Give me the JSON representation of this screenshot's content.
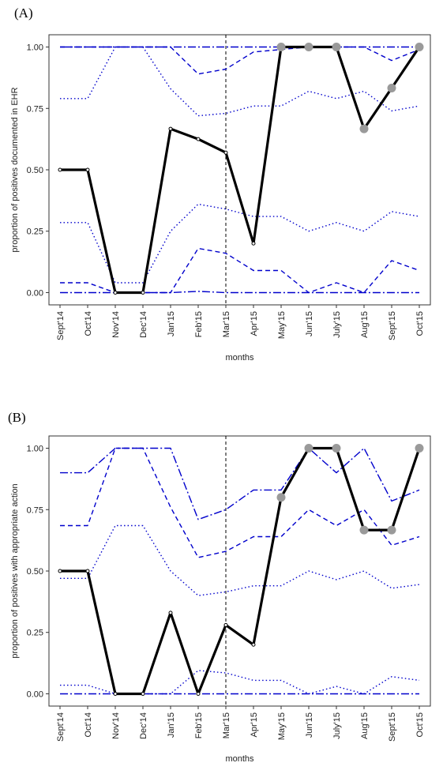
{
  "chart_data": [
    {
      "type": "line",
      "panel_label": "(A)",
      "xlabel": "months",
      "ylabel": "proportion of positives documented in EHR",
      "categories": [
        "Sept'14",
        "Oct'14",
        "Nov'14",
        "Dec'14",
        "Jan'15",
        "Feb'15",
        "Mar'15",
        "Apr'15",
        "May'15",
        "Jun'15",
        "July'15",
        "Aug'15",
        "Sept'15",
        "Oct'15"
      ],
      "ylim": [
        -0.05,
        1.05
      ],
      "yticks": [
        0.0,
        0.25,
        0.5,
        0.75,
        1.0
      ],
      "ytick_labels": [
        "0.00",
        "0.25",
        "0.50",
        "0.75",
        "1.00"
      ],
      "vline_category": "Mar'15",
      "grid": false,
      "series": [
        {
          "style": "solid",
          "color": "#000000",
          "values": [
            0.5,
            0.5,
            0.0,
            0.0,
            0.667,
            0.625,
            0.57,
            0.2,
            1.0,
            1.0,
            1.0,
            0.667,
            0.833,
            1.0
          ]
        },
        {
          "style": "dotted",
          "color": "#0000cc",
          "values": [
            0.79,
            0.79,
            1.0,
            1.0,
            0.83,
            0.72,
            0.73,
            0.76,
            0.76,
            0.82,
            0.79,
            0.82,
            0.74,
            0.76
          ]
        },
        {
          "style": "dotted",
          "color": "#0000cc",
          "values": [
            0.285,
            0.285,
            0.04,
            0.04,
            0.25,
            0.36,
            0.34,
            0.31,
            0.31,
            0.25,
            0.285,
            0.25,
            0.33,
            0.31
          ]
        },
        {
          "style": "dashed",
          "color": "#0000cc",
          "values": [
            1.0,
            1.0,
            1.0,
            1.0,
            1.0,
            0.89,
            0.91,
            0.98,
            0.99,
            1.0,
            1.0,
            1.0,
            0.945,
            0.99
          ]
        },
        {
          "style": "dashed",
          "color": "#0000cc",
          "values": [
            0.04,
            0.04,
            0.0,
            0.0,
            0.0,
            0.18,
            0.16,
            0.09,
            0.09,
            0.0,
            0.04,
            0.0,
            0.13,
            0.09
          ]
        },
        {
          "style": "dashdot",
          "color": "#0000cc",
          "values": [
            1.0,
            1.0,
            1.0,
            1.0,
            1.0,
            1.0,
            1.0,
            1.0,
            1.0,
            1.0,
            1.0,
            1.0,
            1.0,
            1.0
          ]
        },
        {
          "style": "dashdot",
          "color": "#0000cc",
          "values": [
            0.0,
            0.0,
            0.0,
            0.0,
            0.0,
            0.005,
            0.0,
            0.0,
            0.0,
            0.0,
            0.0,
            0.0,
            0.0,
            0.0
          ]
        }
      ],
      "highlight_points": [
        {
          "category": "May'15",
          "value": 1.0
        },
        {
          "category": "Jun'15",
          "value": 1.0
        },
        {
          "category": "July'15",
          "value": 1.0
        },
        {
          "category": "Aug'15",
          "value": 0.667
        },
        {
          "category": "Sept'15",
          "value": 0.833
        },
        {
          "category": "Oct'15",
          "value": 1.0
        }
      ],
      "highlight_color": "#9a9a9a"
    },
    {
      "type": "line",
      "panel_label": "(B)",
      "xlabel": "months",
      "ylabel": "proportion of positives with appropriate action",
      "categories": [
        "Sept'14",
        "Oct'14",
        "Nov'14",
        "Dec'14",
        "Jan'15",
        "Feb'15",
        "Mar'15",
        "Apr'15",
        "May'15",
        "Jun'15",
        "July'15",
        "Aug'15",
        "Sept'15",
        "Oct'15"
      ],
      "ylim": [
        -0.05,
        1.05
      ],
      "yticks": [
        0.0,
        0.25,
        0.5,
        0.75,
        1.0
      ],
      "ytick_labels": [
        "0.00",
        "0.25",
        "0.50",
        "0.75",
        "1.00"
      ],
      "vline_category": "Mar'15",
      "grid": false,
      "series": [
        {
          "style": "solid",
          "color": "#000000",
          "values": [
            0.5,
            0.5,
            0.0,
            0.0,
            0.33,
            0.0,
            0.28,
            0.2,
            0.8,
            1.0,
            1.0,
            0.667,
            0.667,
            1.0
          ]
        },
        {
          "style": "dotted",
          "color": "#0000cc",
          "values": [
            0.47,
            0.47,
            0.685,
            0.685,
            0.5,
            0.4,
            0.415,
            0.44,
            0.44,
            0.5,
            0.465,
            0.5,
            0.43,
            0.445
          ]
        },
        {
          "style": "dotted",
          "color": "#0000cc",
          "values": [
            0.035,
            0.035,
            0.0,
            0.0,
            0.0,
            0.095,
            0.085,
            0.055,
            0.055,
            0.0,
            0.03,
            0.0,
            0.07,
            0.055
          ]
        },
        {
          "style": "dashed",
          "color": "#0000cc",
          "values": [
            0.685,
            0.685,
            1.0,
            1.0,
            0.76,
            0.555,
            0.58,
            0.64,
            0.64,
            0.75,
            0.685,
            0.75,
            0.605,
            0.64
          ]
        },
        {
          "style": "dashdot",
          "color": "#0000cc",
          "values": [
            0.9,
            0.9,
            1.0,
            1.0,
            1.0,
            0.71,
            0.75,
            0.83,
            0.83,
            1.0,
            0.9,
            1.0,
            0.785,
            0.83
          ]
        },
        {
          "style": "dashdot",
          "color": "#0000cc",
          "values": [
            0.0,
            0.0,
            0.0,
            0.0,
            0.0,
            0.0,
            0.0,
            0.0,
            0.0,
            0.0,
            0.0,
            0.0,
            0.0,
            0.0
          ]
        }
      ],
      "highlight_points": [
        {
          "category": "May'15",
          "value": 0.8
        },
        {
          "category": "Jun'15",
          "value": 1.0
        },
        {
          "category": "July'15",
          "value": 1.0
        },
        {
          "category": "Aug'15",
          "value": 0.667
        },
        {
          "category": "Sept'15",
          "value": 0.667
        },
        {
          "category": "Oct'15",
          "value": 1.0
        }
      ],
      "highlight_color": "#9a9a9a"
    }
  ]
}
